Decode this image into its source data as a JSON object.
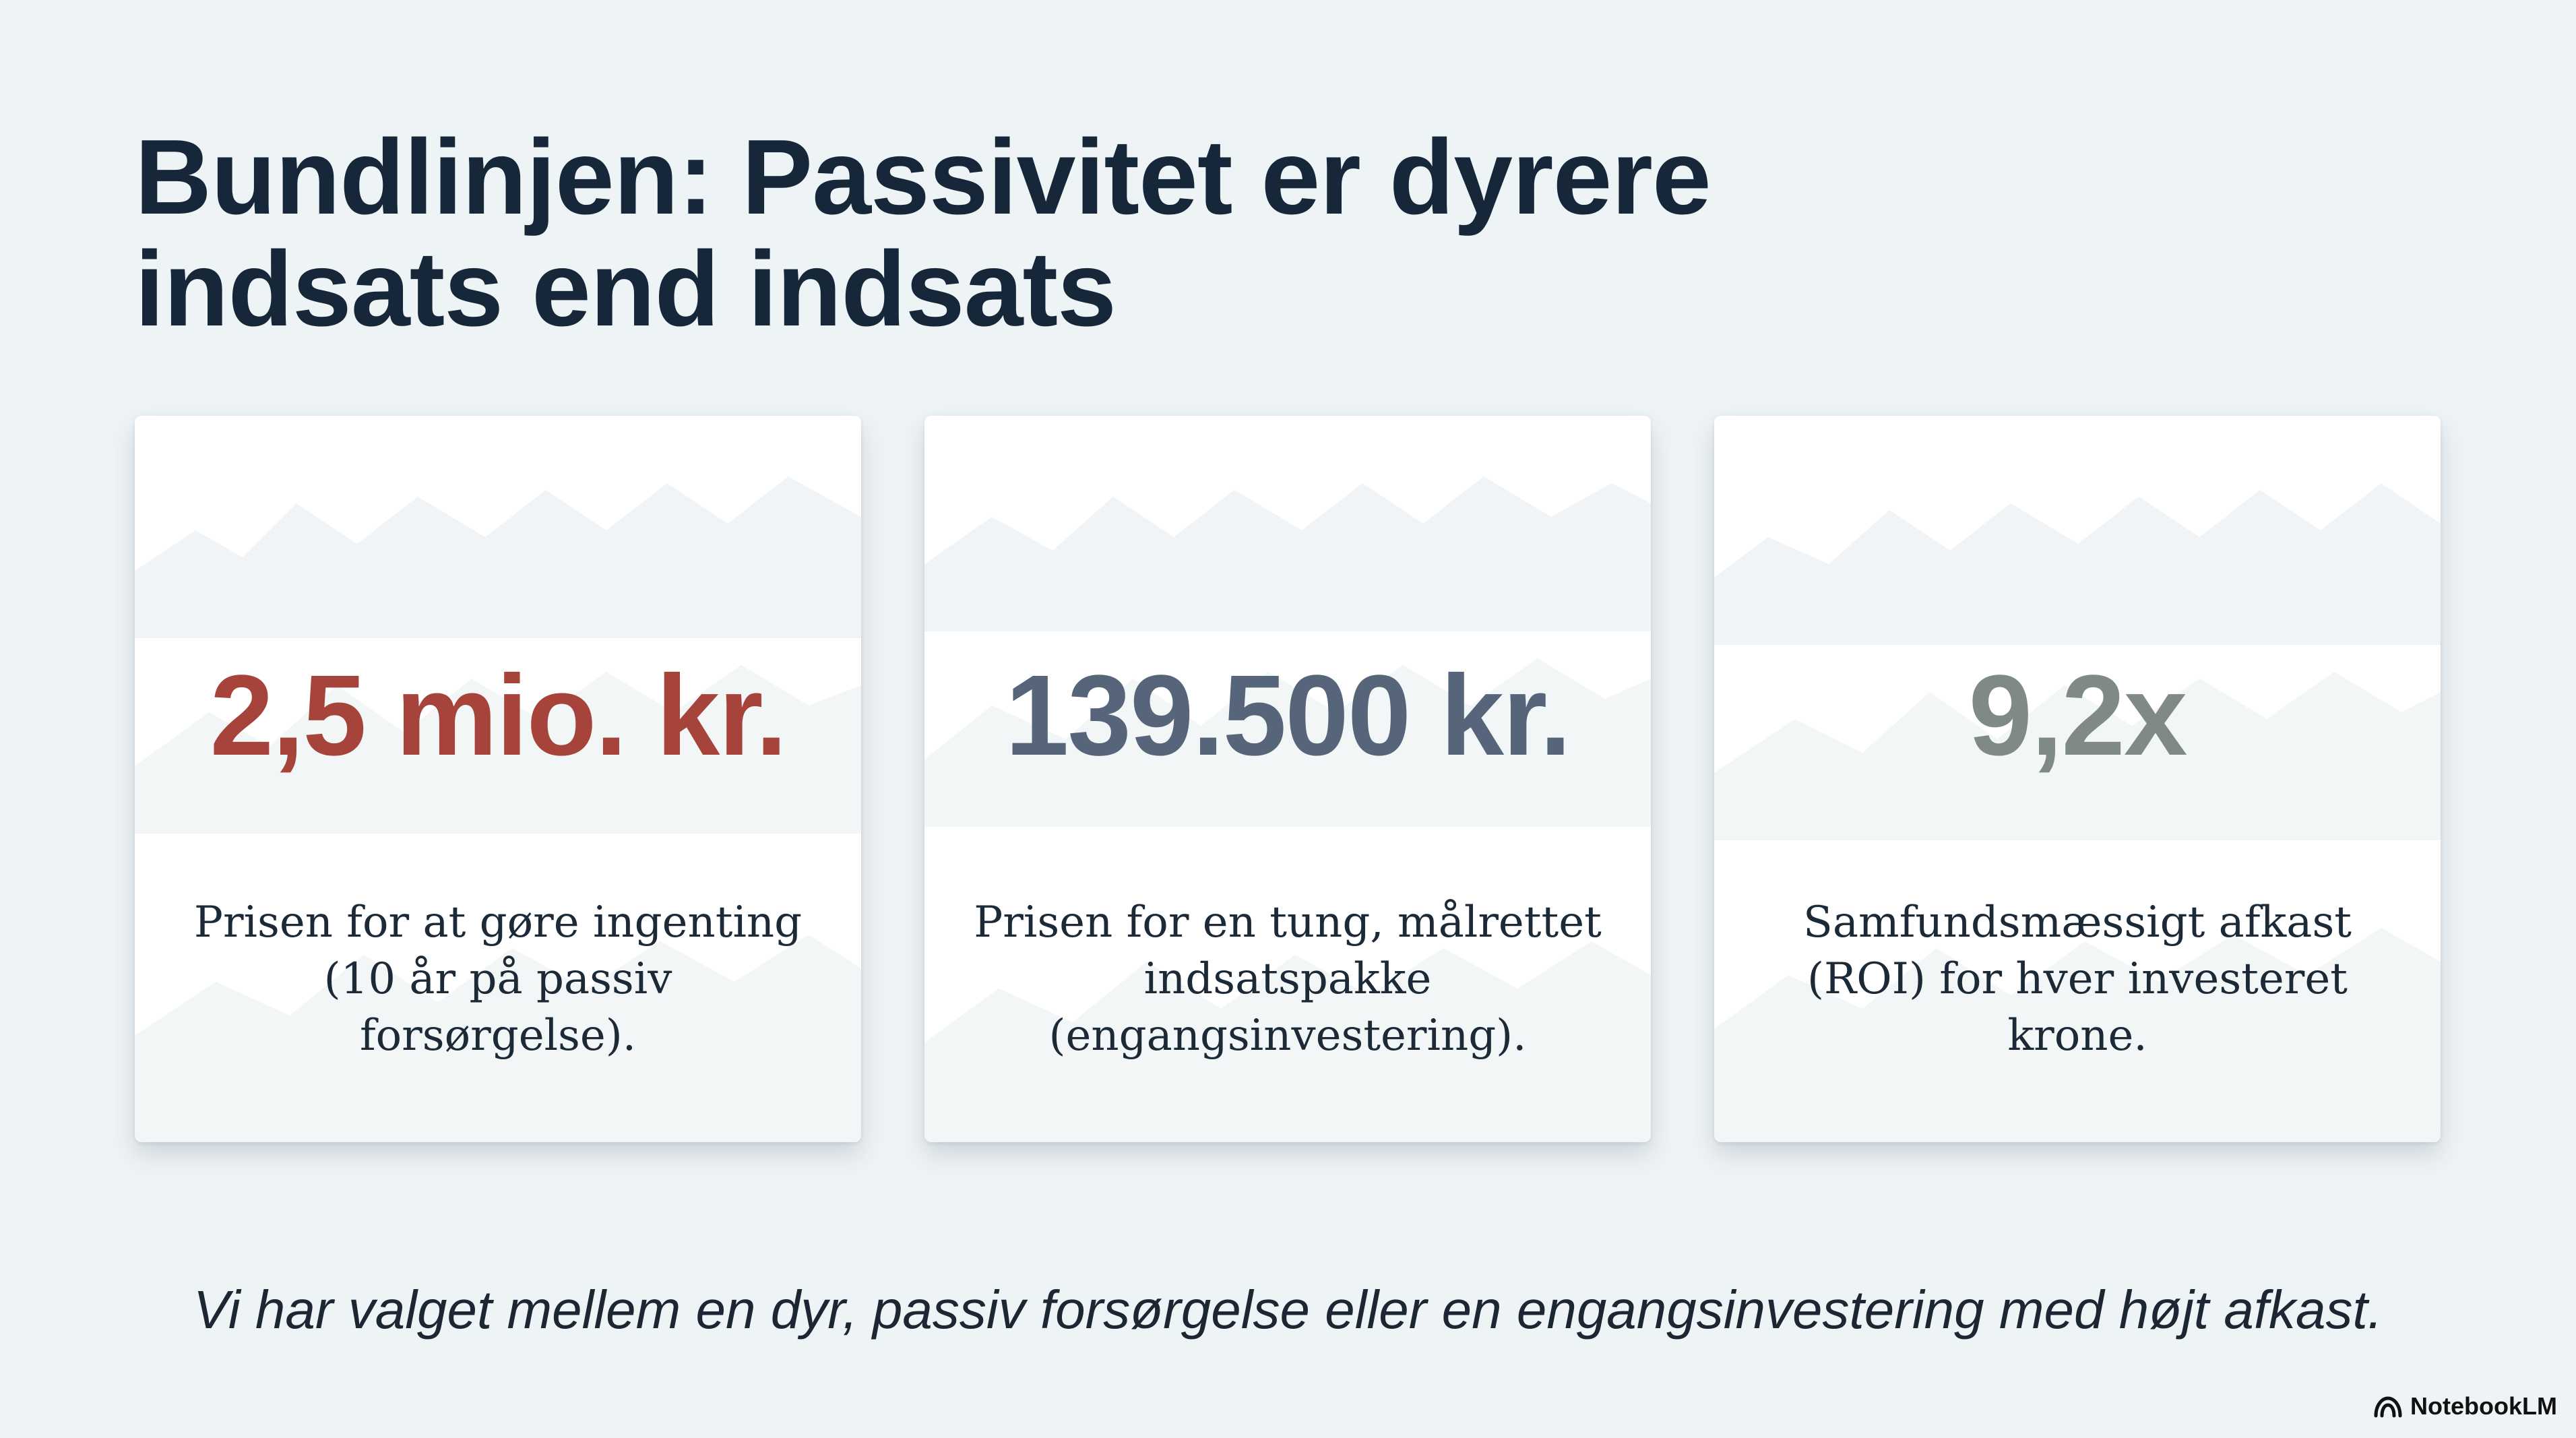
{
  "slide": {
    "title_lines": [
      "Bundlinjen: Passivitet er dyrere",
      "indsats end indsats"
    ],
    "cards": [
      {
        "value": "2,5 mio. kr.",
        "value_color": "#a6433a",
        "description": "Prisen for at gøre ingenting (10 år på passiv forsørgelse)."
      },
      {
        "value": "139.500 kr.",
        "value_color": "#56657a",
        "description": "Prisen for en tung, målrettet indsatspakke (engangsinvestering)."
      },
      {
        "value": "9,2x",
        "value_color": "#7f8a86",
        "description": "Samfundsmæssigt afkast (ROI) for hver investeret krone."
      }
    ],
    "footer_quote": "Vi har valget mellem en dyr, passiv forsørgelse eller en engangsinvestering med højt afkast.",
    "background_color": "#eef3f6"
  },
  "brand": {
    "name": "NotebookLM",
    "icon": "notebooklm-logo-icon"
  }
}
